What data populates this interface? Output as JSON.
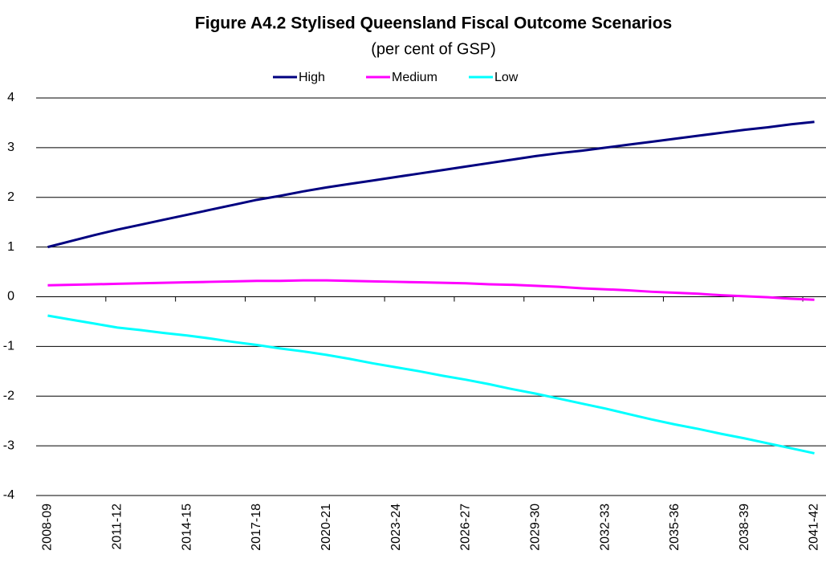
{
  "chart_data": {
    "type": "line",
    "title": "Figure A4.2 Stylised Queensland Fiscal Outcome Scenarios",
    "subtitle": "(per cent of GSP)",
    "categories": [
      "2008-09",
      null,
      null,
      "2011-12",
      null,
      null,
      "2014-15",
      null,
      null,
      "2017-18",
      null,
      null,
      "2020-21",
      null,
      null,
      "2023-24",
      null,
      null,
      "2026-27",
      null,
      null,
      "2029-30",
      null,
      null,
      "2032-33",
      null,
      null,
      "2035-36",
      null,
      null,
      "2038-39",
      null,
      null,
      "2041-42"
    ],
    "series": [
      {
        "name": "High",
        "color": "#000080",
        "values": [
          1.0,
          1.12,
          1.24,
          1.35,
          1.45,
          1.55,
          1.65,
          1.75,
          1.85,
          1.95,
          2.03,
          2.12,
          2.2,
          2.27,
          2.34,
          2.41,
          2.48,
          2.55,
          2.62,
          2.69,
          2.76,
          2.83,
          2.89,
          2.94,
          3.0,
          3.06,
          3.12,
          3.18,
          3.24,
          3.3,
          3.36,
          3.41,
          3.47,
          3.52
        ]
      },
      {
        "name": "Medium",
        "color": "#ff00ff",
        "values": [
          0.23,
          0.24,
          0.25,
          0.26,
          0.27,
          0.28,
          0.29,
          0.3,
          0.31,
          0.32,
          0.32,
          0.33,
          0.33,
          0.32,
          0.31,
          0.3,
          0.29,
          0.28,
          0.27,
          0.25,
          0.24,
          0.22,
          0.2,
          0.17,
          0.15,
          0.13,
          0.1,
          0.08,
          0.06,
          0.03,
          0.01,
          -0.01,
          -0.04,
          -0.06
        ]
      },
      {
        "name": "Low",
        "color": "#00ffff",
        "values": [
          -0.38,
          -0.46,
          -0.54,
          -0.62,
          -0.67,
          -0.73,
          -0.78,
          -0.84,
          -0.91,
          -0.97,
          -1.04,
          -1.1,
          -1.17,
          -1.25,
          -1.34,
          -1.42,
          -1.5,
          -1.59,
          -1.67,
          -1.76,
          -1.86,
          -1.95,
          -2.05,
          -2.15,
          -2.25,
          -2.36,
          -2.47,
          -2.57,
          -2.66,
          -2.76,
          -2.85,
          -2.95,
          -3.05,
          -3.15
        ]
      }
    ],
    "ylim": [
      -4,
      4
    ],
    "yticks": [
      -4,
      -3,
      -2,
      -1,
      0,
      1,
      2,
      3,
      4
    ],
    "grid": true,
    "legend": "top"
  }
}
